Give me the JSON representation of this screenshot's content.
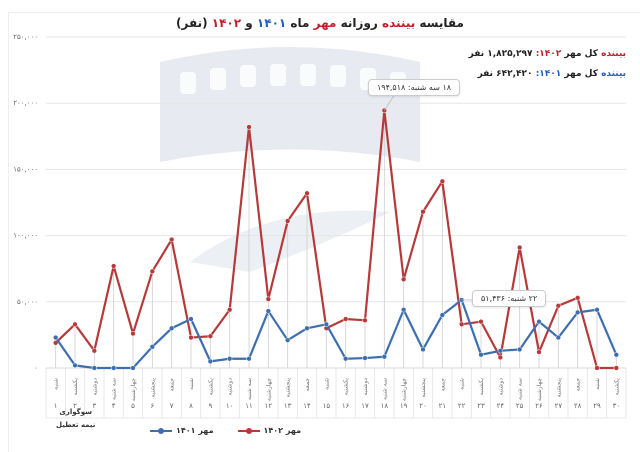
{
  "title": {
    "prefix": "مقایسه",
    "viewers": "بیننده",
    "middle": "روزانه",
    "month": "مهر",
    "month_word": "ماه",
    "year1": "۱۴۰۱",
    "and": "و",
    "year2": "۱۴۰۲",
    "unit": "(نفر)"
  },
  "totals": {
    "line1": {
      "viewers": "بیننده",
      "label": "کل مهر",
      "year": "۱۴۰۲:",
      "value": "۱,۸۲۵,۲۹۷ نفر"
    },
    "line2": {
      "viewers": "بیننده",
      "label": "کل مهر",
      "year": "۱۴۰۱:",
      "value": "۶۴۲,۴۲۰ نفر"
    }
  },
  "annotations": [
    {
      "text": "۱۸ سه شنبه: ۱۹۴,۵۱۸",
      "series": "مهر ۱۴۰۲",
      "day": 18
    },
    {
      "text": "۲۲ شنبه: ۵۱,۴۳۶",
      "series": "مهر ۱۴۰۱",
      "day": 22
    }
  ],
  "note": {
    "line1": "سوگواری",
    "line2": "نیمه تعطیل"
  },
  "legend": [
    {
      "label": "مهر ۱۴۰۱",
      "color": "#3d6fb0"
    },
    {
      "label": "مهر ۱۴۰۲",
      "color": "#b63a3a"
    }
  ],
  "chart_data": {
    "type": "line",
    "title": "مقایسه بیننده روزانه مهر ماه ۱۴۰۱ و ۱۴۰۲ (نفر)",
    "xlabel": "",
    "ylabel": "",
    "ylim": [
      0,
      250000
    ],
    "yticks": [
      "۰",
      "۵۰,۰۰۰",
      "۱۰۰,۰۰۰",
      "۱۵۰,۰۰۰",
      "۲۰۰,۰۰۰",
      "۲۵۰,۰۰۰"
    ],
    "ytick_values": [
      0,
      50000,
      100000,
      150000,
      200000,
      250000
    ],
    "grid": true,
    "legend_position": "bottom",
    "x": [
      "۱",
      "۲",
      "۳",
      "۴",
      "۵",
      "۶",
      "۷",
      "۸",
      "۹",
      "۱۰",
      "۱۱",
      "۱۲",
      "۱۳",
      "۱۴",
      "۱۵",
      "۱۶",
      "۱۷",
      "۱۸",
      "۱۹",
      "۲۰",
      "۲۱",
      "۲۲",
      "۲۳",
      "۲۴",
      "۲۵",
      "۲۶",
      "۲۷",
      "۲۸",
      "۲۹",
      "۳۰"
    ],
    "weekdays": [
      "شنبه",
      "یکشنبه",
      "دوشنبه",
      "سه شنبه",
      "چهارشنبه",
      "پنجشنبه",
      "جمعه",
      "شنبه",
      "یکشنبه",
      "دوشنبه",
      "سه شنبه",
      "چهارشنبه",
      "پنجشنبه",
      "جمعه",
      "شنبه",
      "یکشنبه",
      "دوشنبه",
      "سه شنبه",
      "چهارشنبه",
      "پنجشنبه",
      "جمعه",
      "شنبه",
      "یکشنبه",
      "دوشنبه",
      "سه شنبه",
      "چهارشنبه",
      "پنجشنبه",
      "جمعه",
      "شنبه",
      "یکشنبه"
    ],
    "series": [
      {
        "name": "مهر ۱۴۰۱",
        "color": "#3d6fb0",
        "values": [
          23000,
          2000,
          0,
          0,
          0,
          16000,
          30000,
          37000,
          5000,
          7000,
          7000,
          43000,
          21000,
          30000,
          33000,
          7000,
          7500,
          8500,
          44000,
          14000,
          40000,
          51436,
          10000,
          13000,
          14000,
          35000,
          23000,
          42000,
          44000,
          10000
        ]
      },
      {
        "name": "مهر ۱۴۰۲",
        "color": "#b63a3a",
        "values": [
          19000,
          33000,
          13000,
          77000,
          26000,
          73000,
          97000,
          23000,
          24000,
          44000,
          182000,
          52000,
          111000,
          132000,
          30000,
          37000,
          36000,
          194518,
          67000,
          118000,
          141000,
          33000,
          35000,
          8000,
          91000,
          12000,
          47000,
          53000,
          0,
          0
        ]
      }
    ]
  }
}
